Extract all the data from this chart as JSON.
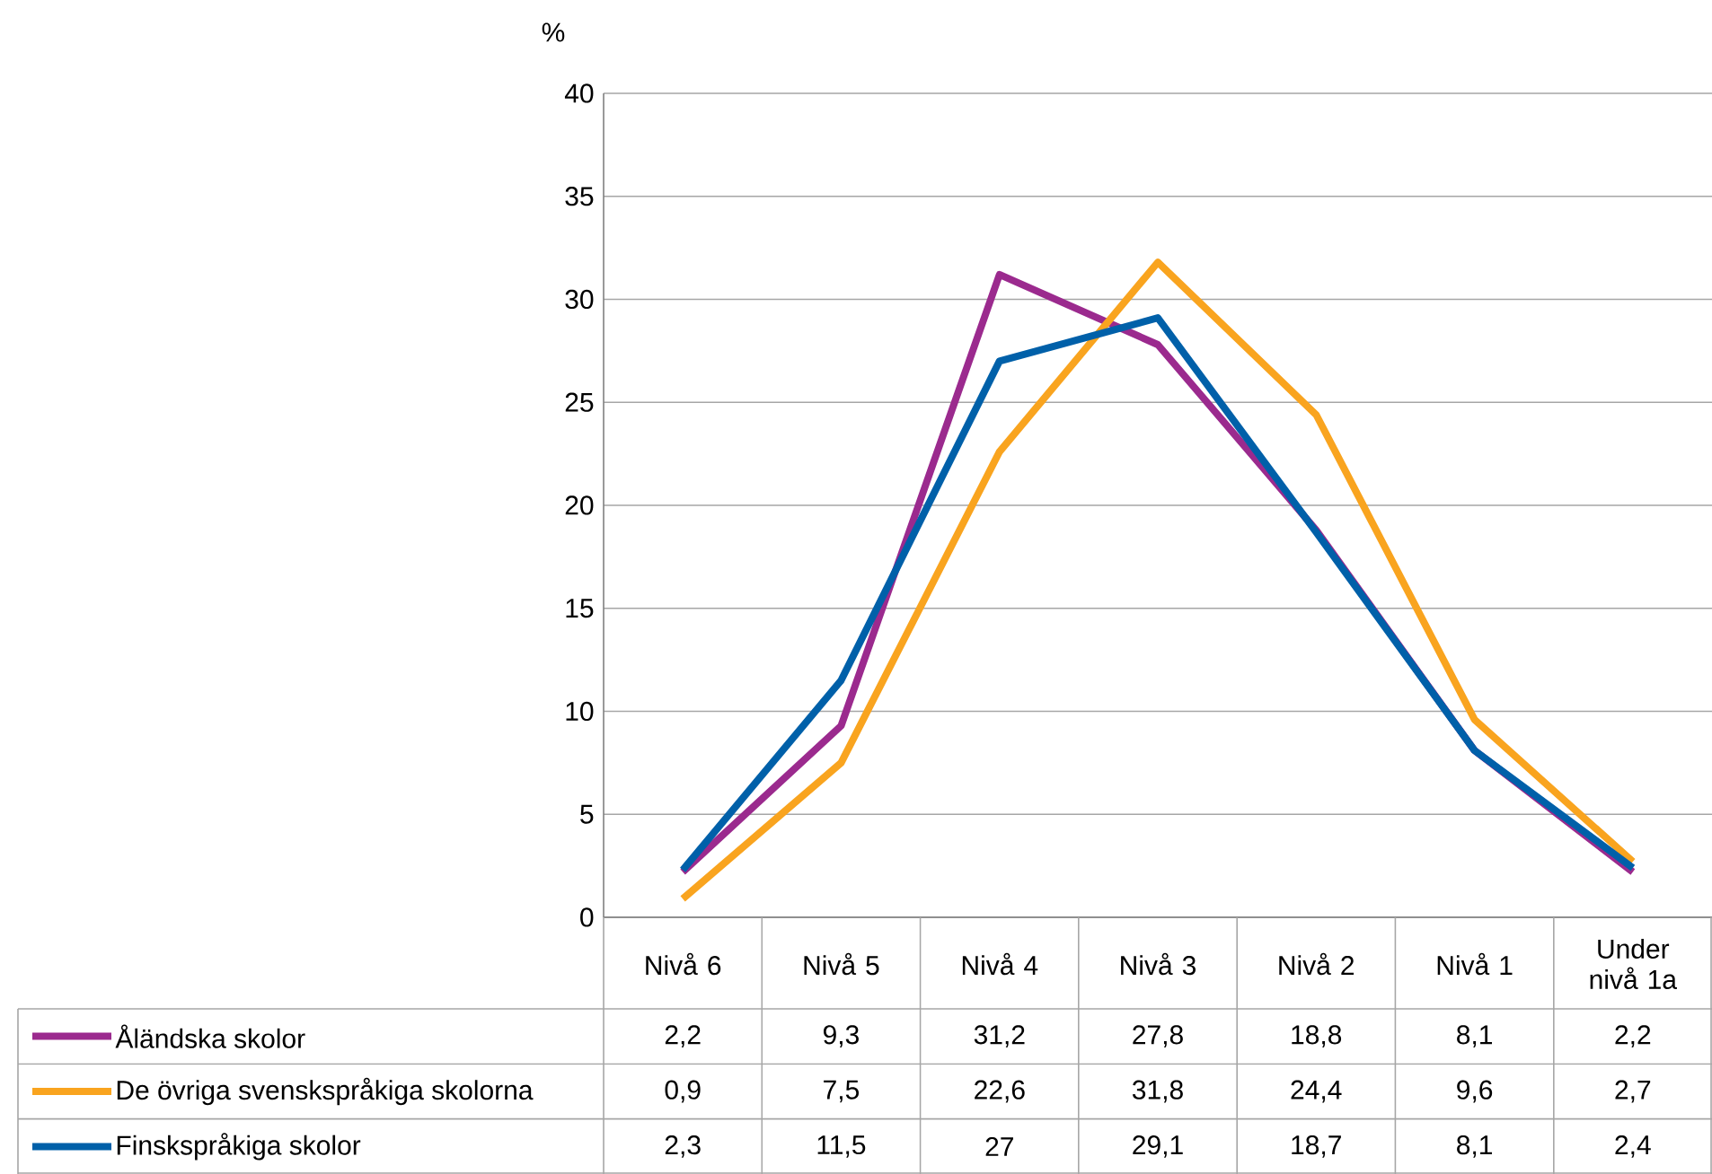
{
  "chart_data": {
    "type": "line",
    "ylabel": "%",
    "categories": [
      "Nivå 6",
      "Nivå 5",
      "Nivå 4",
      "Nivå 3",
      "Nivå 2",
      "Nivå 1",
      "Under nivå 1a"
    ],
    "ylim": [
      0,
      40
    ],
    "yticks": [
      0,
      5,
      10,
      15,
      20,
      25,
      30,
      35,
      40
    ],
    "grid": "y",
    "legend": "bottom left",
    "line_style": "solid",
    "series": [
      {
        "name": "Åländska skolor",
        "color": "#9b2a8e",
        "values": [
          2.2,
          9.3,
          31.2,
          27.8,
          18.8,
          8.1,
          2.2
        ],
        "value_labels": [
          "2,2",
          "9,3",
          "31,2",
          "27,8",
          "18,8",
          "8,1",
          "2,2"
        ]
      },
      {
        "name": "De övriga svenskspråkiga skolorna",
        "color": "#f9a41f",
        "values": [
          0.9,
          7.5,
          22.6,
          31.8,
          24.4,
          9.6,
          2.7
        ],
        "value_labels": [
          "0,9",
          "7,5",
          "22,6",
          "31,8",
          "24,4",
          "9,6",
          "2,7"
        ]
      },
      {
        "name": "Finskspråkiga skolor",
        "color": "#0060a9",
        "values": [
          2.3,
          11.5,
          27,
          29.1,
          18.7,
          8.1,
          2.4
        ],
        "value_labels": [
          "2,3",
          "11,5",
          "27",
          "29,1",
          "18,7",
          "8,1",
          "2,4"
        ]
      }
    ]
  }
}
